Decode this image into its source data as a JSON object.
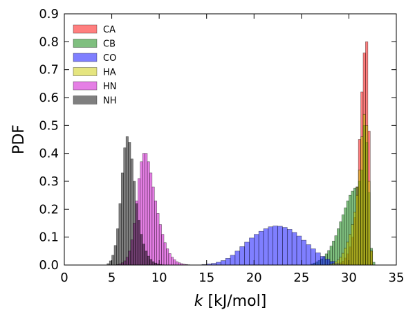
{
  "chart_data": {
    "type": "histogram",
    "xlabel_italic": "k",
    "xlabel_rest": " [kJ/mol]",
    "ylabel": "PDF",
    "xlim": [
      0,
      35
    ],
    "ylim": [
      0,
      0.9
    ],
    "xticks": [
      "0",
      "5",
      "10",
      "15",
      "20",
      "25",
      "30",
      "35"
    ],
    "yticks": [
      "0.0",
      "0.1",
      "0.2",
      "0.3",
      "0.4",
      "0.5",
      "0.6",
      "0.7",
      "0.8",
      "0.9"
    ],
    "legend_position": "top-left",
    "series": [
      {
        "name": "CA",
        "color": "#ff0000",
        "opacity": 0.5,
        "bin_width": 0.25,
        "x": [
          28.5,
          28.75,
          29.0,
          29.25,
          29.5,
          29.75,
          30.0,
          30.25,
          30.5,
          30.75,
          31.0,
          31.25,
          31.5,
          31.75,
          32.0,
          32.25
        ],
        "y": [
          0.002,
          0.004,
          0.008,
          0.014,
          0.025,
          0.04,
          0.065,
          0.1,
          0.17,
          0.28,
          0.45,
          0.62,
          0.76,
          0.8,
          0.48,
          0.05
        ]
      },
      {
        "name": "CB",
        "color": "#008000",
        "opacity": 0.5,
        "bin_width": 0.25,
        "x": [
          26.0,
          26.25,
          26.5,
          26.75,
          27.0,
          27.25,
          27.5,
          27.75,
          28.0,
          28.25,
          28.5,
          28.75,
          29.0,
          29.25,
          29.5,
          29.75,
          30.0,
          30.25,
          30.5,
          30.75,
          31.0,
          31.25,
          31.5,
          31.75,
          32.0,
          32.25,
          32.5
        ],
        "y": [
          0.004,
          0.007,
          0.011,
          0.016,
          0.022,
          0.03,
          0.04,
          0.052,
          0.068,
          0.086,
          0.105,
          0.13,
          0.155,
          0.18,
          0.205,
          0.23,
          0.25,
          0.265,
          0.275,
          0.28,
          0.3,
          0.34,
          0.5,
          0.44,
          0.26,
          0.06,
          0.01
        ]
      },
      {
        "name": "CO",
        "color": "#0000ff",
        "opacity": 0.5,
        "bin_width": 0.5,
        "x": [
          14.5,
          15.0,
          15.5,
          16.0,
          16.5,
          17.0,
          17.5,
          18.0,
          18.5,
          19.0,
          19.5,
          20.0,
          20.5,
          21.0,
          21.5,
          22.0,
          22.5,
          23.0,
          23.5,
          24.0,
          24.5,
          25.0,
          25.5,
          26.0,
          26.5,
          27.0,
          27.5,
          28.0,
          28.5,
          29.0,
          29.5
        ],
        "y": [
          0.002,
          0.004,
          0.006,
          0.01,
          0.016,
          0.024,
          0.035,
          0.05,
          0.066,
          0.082,
          0.097,
          0.11,
          0.121,
          0.13,
          0.137,
          0.14,
          0.139,
          0.135,
          0.128,
          0.117,
          0.104,
          0.089,
          0.073,
          0.058,
          0.044,
          0.031,
          0.021,
          0.013,
          0.007,
          0.003,
          0.001
        ]
      },
      {
        "name": "HA",
        "color": "#cccc00",
        "opacity": 0.5,
        "bin_width": 0.25,
        "x": [
          28.0,
          28.25,
          28.5,
          28.75,
          29.0,
          29.25,
          29.5,
          29.75,
          30.0,
          30.25,
          30.5,
          30.75,
          31.0,
          31.25,
          31.5,
          31.75,
          32.0,
          32.25
        ],
        "y": [
          0.003,
          0.006,
          0.011,
          0.018,
          0.028,
          0.042,
          0.06,
          0.082,
          0.11,
          0.145,
          0.19,
          0.25,
          0.34,
          0.46,
          0.54,
          0.5,
          0.3,
          0.05
        ]
      },
      {
        "name": "HN",
        "color": "#cc00cc",
        "opacity": 0.5,
        "bin_width": 0.25,
        "x": [
          5.5,
          5.75,
          6.0,
          6.25,
          6.5,
          6.75,
          7.0,
          7.25,
          7.5,
          7.75,
          8.0,
          8.25,
          8.5,
          8.75,
          9.0,
          9.25,
          9.5,
          9.75,
          10.0,
          10.25,
          10.5,
          10.75,
          11.0,
          11.25,
          11.5,
          11.75,
          12.0,
          12.25,
          12.5,
          12.75,
          13.0
        ],
        "y": [
          0.002,
          0.004,
          0.008,
          0.015,
          0.028,
          0.05,
          0.09,
          0.15,
          0.23,
          0.31,
          0.37,
          0.4,
          0.4,
          0.37,
          0.33,
          0.28,
          0.23,
          0.185,
          0.145,
          0.11,
          0.08,
          0.058,
          0.041,
          0.028,
          0.019,
          0.012,
          0.008,
          0.005,
          0.003,
          0.002,
          0.001
        ]
      },
      {
        "name": "NH",
        "color": "#000000",
        "opacity": 0.5,
        "bin_width": 0.25,
        "x": [
          4.5,
          4.75,
          5.0,
          5.25,
          5.5,
          5.75,
          6.0,
          6.25,
          6.5,
          6.75,
          7.0,
          7.25,
          7.5,
          7.75,
          8.0,
          8.25,
          8.5,
          8.75,
          9.0,
          9.25,
          9.5,
          9.75,
          10.0,
          10.25
        ],
        "y": [
          0.005,
          0.015,
          0.035,
          0.07,
          0.13,
          0.22,
          0.33,
          0.42,
          0.46,
          0.44,
          0.38,
          0.3,
          0.22,
          0.16,
          0.11,
          0.075,
          0.05,
          0.032,
          0.02,
          0.012,
          0.007,
          0.004,
          0.002,
          0.001
        ]
      }
    ]
  }
}
